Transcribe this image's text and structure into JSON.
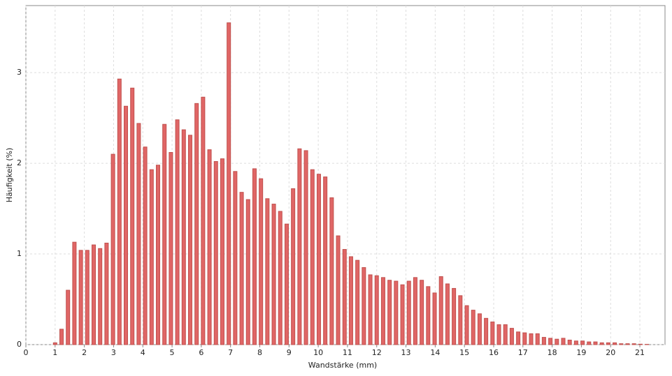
{
  "chart_data": {
    "type": "bar",
    "x_label": "Wandstärke (mm)",
    "y_label": "Häufigkeit (%)",
    "x": [
      1,
      1.22,
      1.44,
      1.66,
      1.88,
      2.1,
      2.32,
      2.54,
      2.76,
      2.98,
      3.2,
      3.42,
      3.64,
      3.86,
      4.08,
      4.3,
      4.52,
      4.74,
      4.96,
      5.18,
      5.4,
      5.62,
      5.84,
      6.06,
      6.28,
      6.5,
      6.72,
      6.94,
      7.16,
      7.38,
      7.6,
      7.82,
      8.04,
      8.26,
      8.48,
      8.7,
      8.92,
      9.14,
      9.36,
      9.58,
      9.8,
      10.02,
      10.24,
      10.46,
      10.68,
      10.9,
      11.12,
      11.34,
      11.56,
      11.78,
      12,
      12.22,
      12.44,
      12.66,
      12.88,
      13.1,
      13.32,
      13.54,
      13.76,
      13.98,
      14.2,
      14.42,
      14.64,
      14.86,
      15.08,
      15.3,
      15.52,
      15.74,
      15.96,
      16.18,
      16.4,
      16.62,
      16.84,
      17.06,
      17.28,
      17.5,
      17.72,
      17.94,
      18.16,
      18.38,
      18.6,
      18.82,
      19.04,
      19.26,
      19.48,
      19.7,
      19.92,
      20.14,
      20.36,
      20.58,
      20.8,
      21.02,
      21.24
    ],
    "values": [
      0.02,
      0.17,
      0.6,
      1.13,
      1.04,
      1.04,
      1.1,
      1.06,
      1.12,
      2.1,
      2.93,
      2.63,
      2.83,
      2.44,
      2.18,
      1.93,
      1.98,
      2.43,
      2.12,
      2.48,
      2.37,
      2.31,
      2.66,
      2.73,
      2.15,
      2.02,
      2.05,
      3.55,
      1.91,
      1.68,
      1.6,
      1.94,
      1.83,
      1.61,
      1.55,
      1.47,
      1.33,
      1.72,
      2.16,
      2.14,
      1.93,
      1.88,
      1.85,
      1.62,
      1.2,
      1.05,
      0.97,
      0.93,
      0.85,
      0.77,
      0.76,
      0.74,
      0.71,
      0.7,
      0.66,
      0.7,
      0.74,
      0.71,
      0.64,
      0.57,
      0.75,
      0.67,
      0.62,
      0.54,
      0.43,
      0.38,
      0.34,
      0.29,
      0.25,
      0.22,
      0.22,
      0.18,
      0.14,
      0.13,
      0.12,
      0.12,
      0.08,
      0.07,
      0.06,
      0.07,
      0.05,
      0.04,
      0.04,
      0.03,
      0.03,
      0.02,
      0.02,
      0.02,
      0.01,
      0.01,
      0.01,
      0.005,
      0.003
    ],
    "color": "#e06666",
    "edge_color": "#c0504d",
    "xlim": [
      0,
      21.86
    ],
    "xticks": [
      0,
      1,
      2,
      3,
      4,
      5,
      6,
      7,
      8,
      9,
      10,
      11,
      12,
      13,
      14,
      15,
      16,
      17,
      18,
      19,
      20,
      21
    ],
    "ylim": [
      0,
      3.74
    ],
    "yticks": [
      0,
      1,
      2,
      3
    ],
    "grid": true
  }
}
